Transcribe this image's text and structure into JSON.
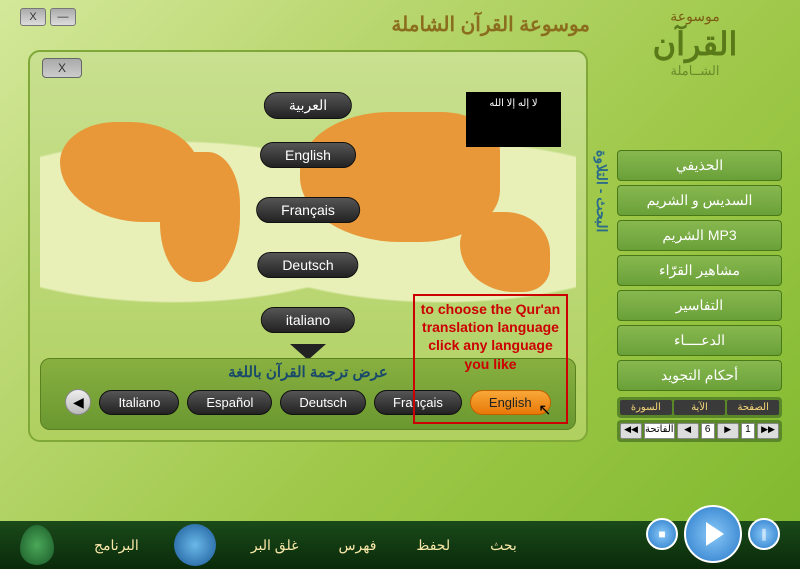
{
  "window": {
    "close": "X",
    "minimize": "—"
  },
  "app_title": "موسوعة القرآن الشاملة",
  "logo": {
    "line1": "موسوعة",
    "line2": "القرآن",
    "line3": "الشــاملة"
  },
  "dialog": {
    "close": "X",
    "flag_text": "لا إله إلا الله",
    "lang_pills": [
      "العربية",
      "English",
      "Français",
      "Deutsch",
      "italiano"
    ],
    "panel_title": "عرض ترجمة القرآن باللغة",
    "lang_buttons": [
      "Italiano",
      "Español",
      "Deutsch",
      "Français",
      "English"
    ],
    "active_lang": "English"
  },
  "annotation": "to choose the Qur'an translation language click any language you like",
  "sidebar": {
    "vertical": "البحث - التلاوة",
    "items": [
      "الحذيفي",
      "السديس و الشريم",
      "الشريم   MP3",
      "مشاهير القرّاء",
      "التفاسير",
      "الدعــــاء",
      "أحكام التجويد"
    ],
    "pager_labels": [
      "السورة",
      "الآية",
      "الصفحة"
    ],
    "pager_values": [
      "الفاتحة",
      "6",
      "1"
    ]
  },
  "bottom_bar": {
    "links": [
      "البرنامج",
      "غلق البر",
      "فهرس",
      "لحفظ",
      "بحث"
    ]
  }
}
